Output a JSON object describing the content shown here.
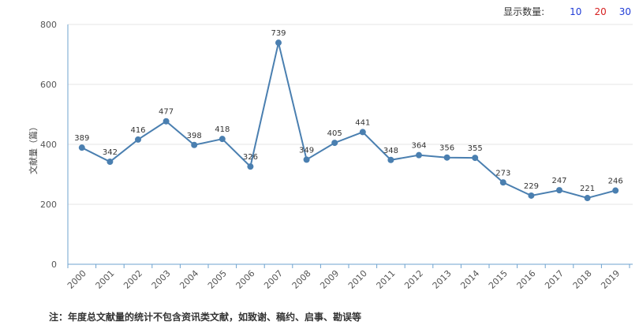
{
  "controls": {
    "label": "显示数量:",
    "options": [
      {
        "text": "10",
        "color": "#1f3bd6"
      },
      {
        "text": "20",
        "color": "#d62020"
      },
      {
        "text": "30",
        "color": "#1f3bd6"
      }
    ]
  },
  "note": "注：年度总文献量的统计不包含资讯类文献，如致谢、稿约、启事、勘误等",
  "chart_data": {
    "type": "line",
    "ylabel": "文献量（篇）",
    "xlabel": "",
    "ylim": [
      0,
      800
    ],
    "yticks": [
      0,
      200,
      400,
      600,
      800
    ],
    "categories": [
      "2000",
      "2001",
      "2002",
      "2003",
      "2004",
      "2005",
      "2006",
      "2007",
      "2008",
      "2009",
      "2010",
      "2011",
      "2012",
      "2013",
      "2014",
      "2015",
      "2016",
      "2017",
      "2018",
      "2019"
    ],
    "series": [
      {
        "values": [
          389,
          342,
          416,
          477,
          398,
          418,
          326,
          739,
          349,
          405,
          441,
          348,
          364,
          356,
          355,
          273,
          229,
          247,
          221,
          246
        ],
        "color": "#4a7fb0"
      }
    ],
    "grid": "horizontal"
  }
}
